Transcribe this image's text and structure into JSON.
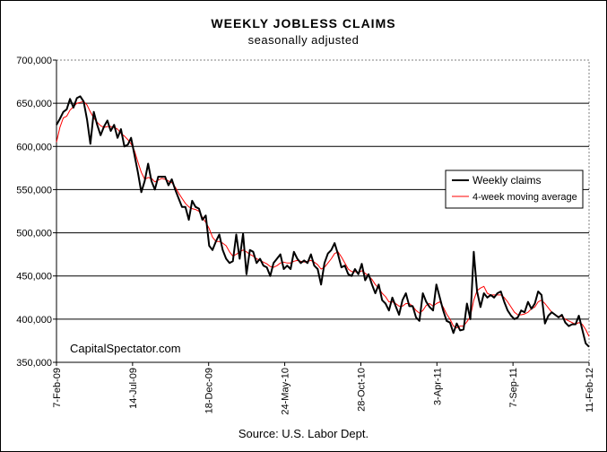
{
  "title": "WEEKLY JOBLESS CLAIMS",
  "subtitle": "seasonally adjusted",
  "source": "Source: U.S. Labor Dept.",
  "watermark": "CapitalSpectator.com",
  "colors": {
    "weekly": "#000000",
    "moving_average": "#ff0000",
    "gridline": "#000000",
    "plot_border": "#808080"
  },
  "chart_data": {
    "type": "line",
    "ylim": [
      350000,
      700000
    ],
    "y_ticks": [
      350000,
      400000,
      450000,
      500000,
      550000,
      600000,
      650000,
      700000
    ],
    "y_tick_labels": [
      "350,000",
      "400,000",
      "450,000",
      "500,000",
      "550,000",
      "600,000",
      "650,000",
      "700,000"
    ],
    "x_tick_labels": [
      "7-Feb-09",
      "14-Jul-09",
      "18-Dec-09",
      "24-May-10",
      "28-Oct-10",
      "3-Apr-11",
      "7-Sep-11",
      "11-Feb-12"
    ],
    "x_tick_weeks": [
      0,
      22.57,
      45.14,
      67.71,
      90.29,
      112.86,
      135.43,
      158
    ],
    "legend_position": "right",
    "grid": "horizontal",
    "series": [
      {
        "name": "Weekly claims",
        "color": "#000000",
        "values": [
          625000,
          632000,
          640000,
          643000,
          655000,
          645000,
          656000,
          658000,
          652000,
          631000,
          603000,
          640000,
          625000,
          613000,
          623000,
          630000,
          618000,
          625000,
          610000,
          620000,
          600000,
          602000,
          610000,
          590000,
          570000,
          547000,
          560000,
          580000,
          560000,
          550000,
          565000,
          565000,
          565000,
          555000,
          562000,
          550000,
          540000,
          530000,
          530000,
          515000,
          537000,
          530000,
          528000,
          515000,
          520000,
          485000,
          480000,
          490000,
          498000,
          480000,
          470000,
          465000,
          467000,
          498000,
          470000,
          499000,
          452000,
          480000,
          478000,
          465000,
          470000,
          462000,
          460000,
          450000,
          465000,
          470000,
          475000,
          458000,
          462000,
          458000,
          478000,
          470000,
          465000,
          468000,
          465000,
          475000,
          462000,
          458000,
          440000,
          465000,
          476000,
          480000,
          488000,
          475000,
          460000,
          462000,
          452000,
          450000,
          458000,
          452000,
          464000,
          445000,
          452000,
          440000,
          430000,
          440000,
          422000,
          418000,
          410000,
          425000,
          415000,
          405000,
          422000,
          430000,
          415000,
          415000,
          402000,
          398000,
          430000,
          420000,
          414000,
          410000,
          440000,
          425000,
          410000,
          398000,
          396000,
          384000,
          395000,
          387000,
          388000,
          418000,
          400000,
          478000,
          432000,
          414000,
          430000,
          425000,
          428000,
          425000,
          430000,
          432000,
          420000,
          410000,
          404000,
          400000,
          402000,
          410000,
          408000,
          420000,
          412000,
          418000,
          432000,
          428000,
          395000,
          404000,
          408000,
          405000,
          402000,
          405000,
          396000,
          392000,
          394000,
          394000,
          404000,
          388000,
          372000,
          368000
        ],
        "note": "weekly series sampled roughly one point per week"
      },
      {
        "name": "4-week moving average",
        "color": "#ff0000",
        "values": [
          605000,
          622000,
          633000,
          635000,
          642000,
          646000,
          650000,
          651000,
          652000,
          648000,
          640000,
          633000,
          628000,
          624000,
          622000,
          623000,
          623000,
          622000,
          620000,
          615000,
          612000,
          608000,
          603000,
          595000,
          582000,
          570000,
          562000,
          564000,
          563000,
          559000,
          561000,
          563000,
          562000,
          560000,
          558000,
          553000,
          546000,
          540000,
          534000,
          530000,
          528000,
          527000,
          525000,
          518000,
          512000,
          505000,
          495000,
          490000,
          490000,
          488000,
          485000,
          478000,
          473000,
          475000,
          478000,
          480000,
          478000,
          475000,
          473000,
          470000,
          468000,
          466000,
          464000,
          461000,
          460000,
          462000,
          465000,
          466000,
          465000,
          465000,
          467000,
          468000,
          467000,
          466000,
          467000,
          468000,
          466000,
          463000,
          458000,
          460000,
          465000,
          470000,
          476000,
          478000,
          472000,
          465000,
          458000,
          455000,
          455000,
          454000,
          456000,
          453000,
          450000,
          446000,
          440000,
          436000,
          430000,
          426000,
          420000,
          420000,
          418000,
          415000,
          415000,
          418000,
          418000,
          415000,
          410000,
          407000,
          410000,
          416000,
          418000,
          415000,
          418000,
          420000,
          414000,
          406000,
          400000,
          392000,
          390000,
          392000,
          392000,
          397000,
          403000,
          422000,
          433000,
          436000,
          438000,
          430000,
          428000,
          428000,
          428000,
          428000,
          425000,
          420000,
          414000,
          408000,
          405000,
          405000,
          406000,
          408000,
          412000,
          414000,
          420000,
          422000,
          418000,
          413000,
          408000,
          405000,
          403000,
          403000,
          400000,
          398000,
          396000,
          394000,
          396000,
          394000,
          388000,
          380000
        ]
      }
    ]
  }
}
